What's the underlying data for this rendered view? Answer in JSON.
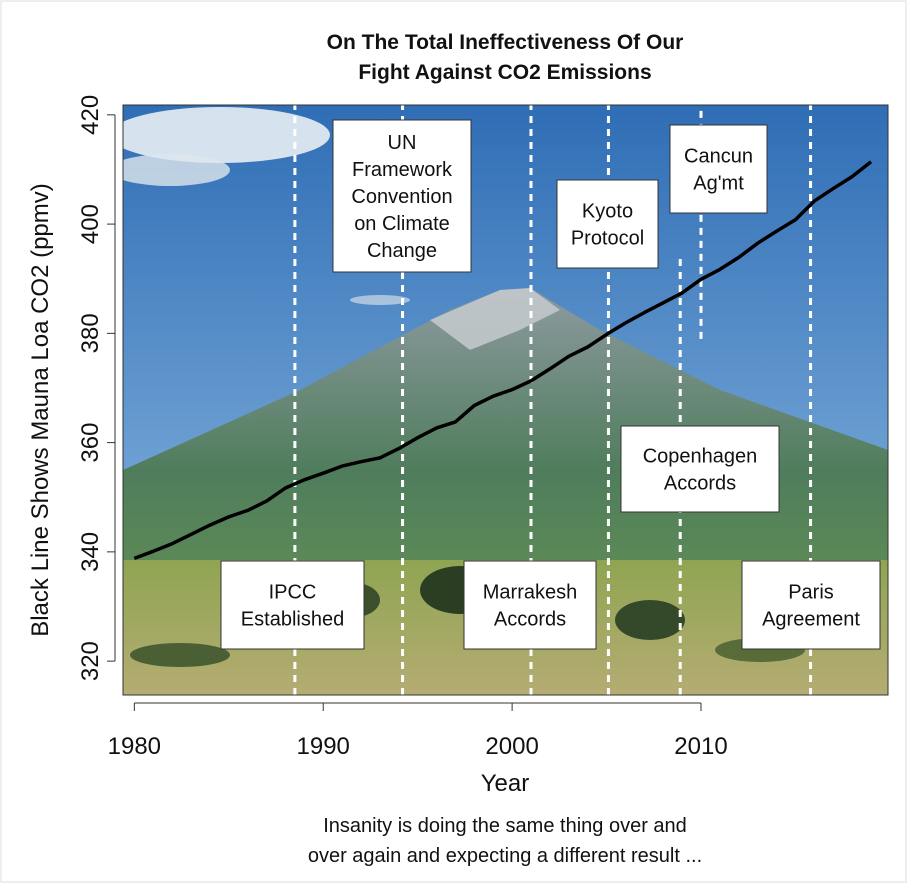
{
  "chart_data": {
    "type": "line",
    "title": [
      "On The Total Ineffectiveness Of Our",
      "Fight Against CO2 Emissions"
    ],
    "x_label": "Year",
    "y_label": "Black Line Shows Mauna Loa CO2 (ppmv)",
    "caption": [
      "Insanity is doing the same thing over and",
      "over again and expecting a different result ..."
    ],
    "xlim": [
      1979.4,
      2019.9
    ],
    "ylim": [
      313.8,
      421.8
    ],
    "xticks": [
      1980,
      1990,
      2000,
      2010
    ],
    "yticks": [
      320,
      340,
      360,
      380,
      400,
      420
    ],
    "x": [
      1980,
      1981,
      1982,
      1983,
      1984,
      1985,
      1986,
      1987,
      1988,
      1989,
      1990,
      1991,
      1992,
      1993,
      1994,
      1995,
      1996,
      1997,
      1998,
      1999,
      2000,
      2001,
      2002,
      2003,
      2004,
      2005,
      2006,
      2007,
      2008,
      2009,
      2010,
      2011,
      2012,
      2013,
      2014,
      2015,
      2016,
      2017,
      2018,
      2019
    ],
    "series": [
      {
        "color": "#000000",
        "values": [
          338.8,
          340.1,
          341.5,
          343.2,
          344.9,
          346.4,
          347.6,
          349.3,
          351.7,
          353.2,
          354.4,
          355.7,
          356.5,
          357.2,
          358.9,
          360.9,
          362.7,
          363.8,
          366.8,
          368.5,
          369.7,
          371.3,
          373.5,
          375.8,
          377.5,
          379.8,
          381.9,
          383.8,
          385.6,
          387.4,
          389.9,
          391.7,
          393.9,
          396.5,
          398.7,
          400.8,
          404.2,
          406.5,
          408.7,
          411.4
        ]
      }
    ],
    "events": [
      {
        "x": 1988.5,
        "label": [
          "IPCC",
          "Established"
        ]
      },
      {
        "x": 1994.2,
        "label": [
          "UN",
          "Framework",
          "Convention",
          "on Climate",
          "Change"
        ]
      },
      {
        "x": 2001.0,
        "label": [
          "Marrakesh",
          "Accords"
        ]
      },
      {
        "x": 2005.1,
        "label": [
          "Kyoto",
          "Protocol"
        ]
      },
      {
        "x": 2008.9,
        "label": [
          "Copenhagen",
          "Accords"
        ],
        "yrange": [
          313.8,
          394
        ]
      },
      {
        "x": 2010.0,
        "label": [
          "Cancun",
          "Ag'mt"
        ],
        "yrange": [
          379,
          421.8
        ]
      },
      {
        "x": 2015.8,
        "label": [
          "Paris",
          "Agreement"
        ]
      }
    ]
  }
}
